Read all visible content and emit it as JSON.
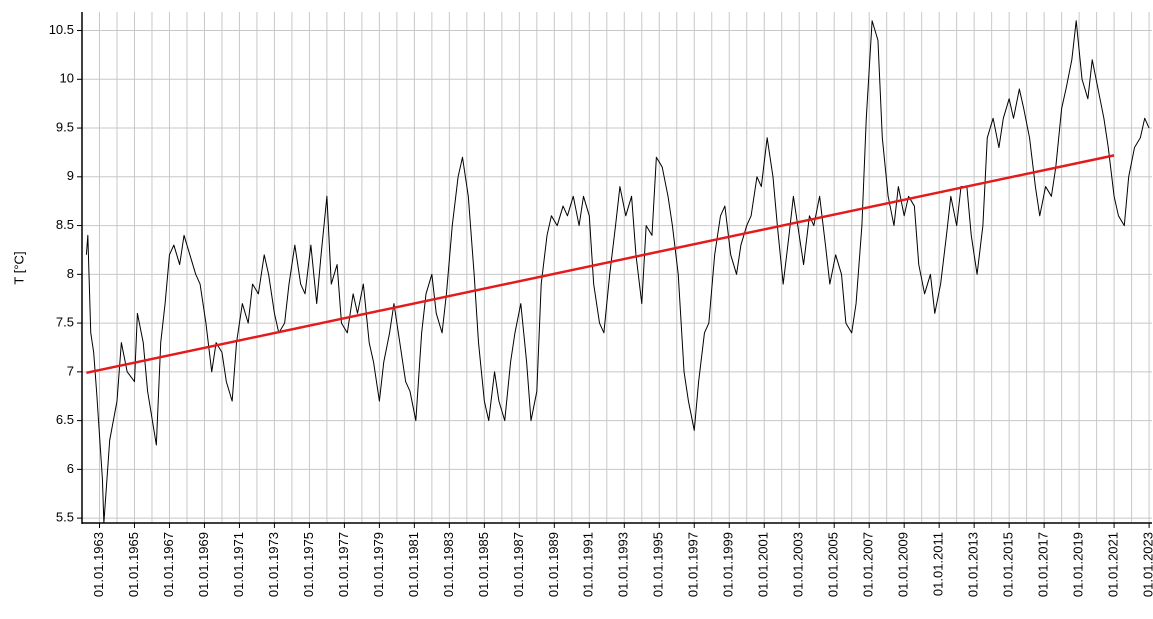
{
  "chart_data": {
    "type": "line",
    "ylabel": "T [°C]",
    "xlim": [
      "01.01.1962",
      "01.03.2023"
    ],
    "ylim": [
      5.45,
      10.69
    ],
    "yticks": [
      5.5,
      6,
      6.5,
      7,
      7.5,
      8,
      8.5,
      9,
      9.5,
      10,
      10.5
    ],
    "xticks": [
      "01.01.1963",
      "01.01.1965",
      "01.01.1967",
      "01.01.1969",
      "01.01.1971",
      "01.01.1973",
      "01.01.1975",
      "01.01.1977",
      "01.01.1979",
      "01.01.1981",
      "01.01.1983",
      "01.01.1985",
      "01.01.1987",
      "01.01.1989",
      "01.01.1991",
      "01.01.1993",
      "01.01.1995",
      "01.01.1997",
      "01.01.1999",
      "01.01.2001",
      "01.01.2003",
      "01.01.2005",
      "01.01.2007",
      "01.01.2009",
      "01.01.2011",
      "01.01.2013",
      "01.01.2015",
      "01.01.2017",
      "01.01.2019",
      "01.01.2021",
      "01.01.2023"
    ],
    "grid": true,
    "minor_grid": true,
    "series": [
      {
        "color": "#000000",
        "width": 1,
        "x": [
          "01.04.1962",
          "01.05.1962",
          "01.07.1962",
          "01.09.1962",
          "01.11.1962",
          "01.03.1963",
          "01.04.1963",
          "01.08.1963",
          "01.01.1964",
          "01.04.1964",
          "01.08.1964",
          "01.01.1965",
          "01.03.1965",
          "01.07.1965",
          "01.10.1965",
          "01.04.1966",
          "01.07.1966",
          "01.10.1966",
          "01.01.1967",
          "01.04.1967",
          "01.08.1967",
          "01.11.1967",
          "01.03.1968",
          "01.07.1968",
          "01.10.1968",
          "01.02.1969",
          "01.06.1969",
          "01.09.1969",
          "01.01.1970",
          "01.04.1970",
          "01.08.1970",
          "01.11.1970",
          "01.03.1971",
          "01.07.1971",
          "01.10.1971",
          "01.02.1972",
          "01.06.1972",
          "01.09.1972",
          "01.01.1973",
          "01.04.1973",
          "01.08.1973",
          "01.11.1973",
          "01.03.1974",
          "01.07.1974",
          "01.10.1974",
          "01.02.1975",
          "01.06.1975",
          "01.09.1975",
          "01.01.1976",
          "01.04.1976",
          "01.08.1976",
          "01.11.1976",
          "01.03.1977",
          "01.07.1977",
          "01.10.1977",
          "01.02.1978",
          "01.06.1978",
          "01.09.1978",
          "01.01.1979",
          "01.04.1979",
          "01.08.1979",
          "01.11.1979",
          "01.03.1980",
          "01.07.1980",
          "01.10.1980",
          "01.02.1981",
          "01.06.1981",
          "01.09.1981",
          "01.01.1982",
          "01.04.1982",
          "01.08.1982",
          "01.11.1982",
          "01.03.1983",
          "01.07.1983",
          "01.10.1983",
          "01.02.1984",
          "01.06.1984",
          "01.09.1984",
          "01.01.1985",
          "01.04.1985",
          "01.08.1985",
          "01.11.1985",
          "01.03.1986",
          "01.07.1986",
          "01.10.1986",
          "01.02.1987",
          "01.06.1987",
          "01.09.1987",
          "01.01.1988",
          "01.04.1988",
          "01.08.1988",
          "01.11.1988",
          "01.03.1989",
          "01.07.1989",
          "01.10.1989",
          "01.02.1990",
          "01.06.1990",
          "01.09.1990",
          "01.01.1991",
          "01.04.1991",
          "01.08.1991",
          "01.11.1991",
          "01.03.1992",
          "01.07.1992",
          "01.10.1992",
          "01.02.1993",
          "01.06.1993",
          "01.09.1993",
          "01.01.1994",
          "01.04.1994",
          "01.08.1994",
          "01.11.1994",
          "01.03.1995",
          "01.07.1995",
          "01.10.1995",
          "01.02.1996",
          "01.06.1996",
          "01.09.1996",
          "01.01.1997",
          "01.04.1997",
          "01.08.1997",
          "01.11.1997",
          "01.03.1998",
          "01.07.1998",
          "01.10.1998",
          "01.02.1999",
          "01.06.1999",
          "01.09.1999",
          "01.01.2000",
          "01.04.2000",
          "01.08.2000",
          "01.11.2000",
          "01.03.2001",
          "01.07.2001",
          "01.10.2001",
          "01.02.2002",
          "01.06.2002",
          "01.09.2002",
          "01.01.2003",
          "01.04.2003",
          "01.08.2003",
          "01.11.2003",
          "01.03.2004",
          "01.07.2004",
          "01.10.2004",
          "01.02.2005",
          "01.06.2005",
          "01.09.2005",
          "01.01.2006",
          "01.04.2006",
          "01.08.2006",
          "01.11.2006",
          "01.03.2007",
          "01.07.2007",
          "01.10.2007",
          "01.02.2008",
          "01.06.2008",
          "01.09.2008",
          "01.01.2009",
          "01.04.2009",
          "01.08.2009",
          "01.11.2009",
          "01.03.2010",
          "01.07.2010",
          "01.10.2010",
          "01.02.2011",
          "01.06.2011",
          "01.09.2011",
          "01.01.2012",
          "01.04.2012",
          "01.08.2012",
          "01.11.2012",
          "01.03.2013",
          "01.07.2013",
          "01.10.2013",
          "01.02.2014",
          "01.06.2014",
          "01.09.2014",
          "01.01.2015",
          "01.04.2015",
          "01.08.2015",
          "01.11.2015",
          "01.03.2016",
          "01.07.2016",
          "01.10.2016",
          "01.02.2017",
          "01.06.2017",
          "01.09.2017",
          "01.01.2018",
          "01.04.2018",
          "01.08.2018",
          "01.11.2018",
          "01.03.2019",
          "01.07.2019",
          "01.10.2019",
          "01.02.2020",
          "01.06.2020",
          "01.09.2020",
          "01.01.2021",
          "01.04.2021",
          "01.08.2021",
          "01.11.2021",
          "01.03.2022",
          "01.07.2022",
          "01.10.2022",
          "01.01.2023"
        ],
        "values": [
          8.2,
          8.4,
          7.4,
          7.2,
          6.8,
          5.9,
          5.45,
          6.3,
          6.7,
          7.3,
          7.0,
          6.9,
          7.6,
          7.3,
          6.8,
          6.25,
          7.3,
          7.7,
          8.2,
          8.3,
          8.1,
          8.4,
          8.2,
          8.0,
          7.9,
          7.5,
          7.0,
          7.3,
          7.2,
          6.9,
          6.7,
          7.3,
          7.7,
          7.5,
          7.9,
          7.8,
          8.2,
          8.0,
          7.6,
          7.4,
          7.5,
          7.9,
          8.3,
          7.9,
          7.8,
          8.3,
          7.7,
          8.2,
          8.8,
          7.9,
          8.1,
          7.5,
          7.4,
          7.8,
          7.6,
          7.9,
          7.3,
          7.1,
          6.7,
          7.1,
          7.4,
          7.7,
          7.3,
          6.9,
          6.8,
          6.5,
          7.4,
          7.8,
          8.0,
          7.6,
          7.4,
          7.8,
          8.5,
          9.0,
          9.2,
          8.8,
          8.0,
          7.3,
          6.7,
          6.5,
          7.0,
          6.7,
          6.5,
          7.1,
          7.4,
          7.7,
          7.1,
          6.5,
          6.8,
          7.9,
          8.4,
          8.6,
          8.5,
          8.7,
          8.6,
          8.8,
          8.5,
          8.8,
          8.6,
          7.9,
          7.5,
          7.4,
          8.0,
          8.5,
          8.9,
          8.6,
          8.8,
          8.2,
          7.7,
          8.5,
          8.4,
          9.2,
          9.1,
          8.8,
          8.5,
          8.0,
          7.0,
          6.7,
          6.4,
          6.9,
          7.4,
          7.5,
          8.2,
          8.6,
          8.7,
          8.2,
          8.0,
          8.3,
          8.5,
          8.6,
          9.0,
          8.9,
          9.4,
          9.0,
          8.5,
          7.9,
          8.4,
          8.8,
          8.4,
          8.1,
          8.6,
          8.5,
          8.8,
          8.3,
          7.9,
          8.2,
          8.0,
          7.5,
          7.4,
          7.7,
          8.5,
          9.6,
          10.6,
          10.4,
          9.4,
          8.8,
          8.5,
          8.9,
          8.6,
          8.8,
          8.7,
          8.1,
          7.8,
          8.0,
          7.6,
          7.9,
          8.4,
          8.8,
          8.5,
          8.9,
          8.9,
          8.4,
          8.0,
          8.5,
          9.4,
          9.6,
          9.3,
          9.6,
          9.8,
          9.6,
          9.9,
          9.7,
          9.4,
          8.9,
          8.6,
          8.9,
          8.8,
          9.1,
          9.7,
          9.9,
          10.2,
          10.6,
          10.0,
          9.8,
          10.2,
          9.9,
          9.6,
          9.3,
          8.8,
          8.6,
          8.5,
          9.0,
          9.3,
          9.4,
          9.6,
          9.5
        ]
      },
      {
        "color": "#e41a1c",
        "width": 2.5,
        "x": [
          "01.04.1962",
          "01.01.2021"
        ],
        "values": [
          6.99,
          9.22
        ]
      }
    ]
  }
}
